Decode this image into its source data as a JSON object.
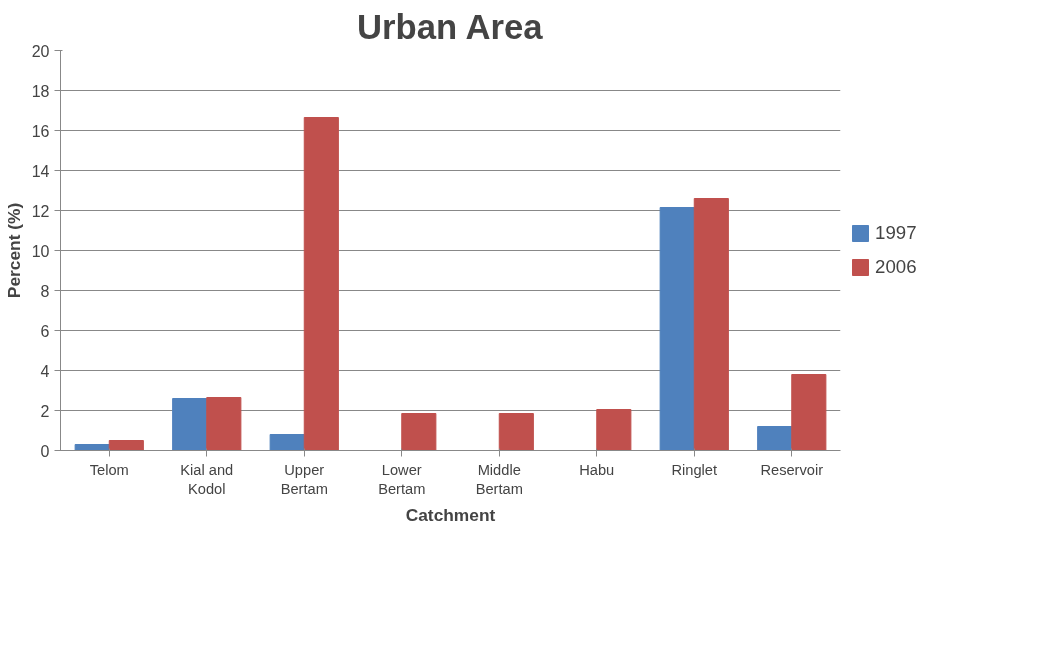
{
  "chart_data": {
    "type": "bar",
    "title": "Urban Area",
    "xlabel": "Catchment",
    "ylabel": "Percent (%)",
    "categories": [
      "Telom",
      "Kial and Kodol",
      "Upper Bertam",
      "Lower Bertam",
      "Middle Bertam",
      "Habu",
      "Ringlet",
      "Reservoir"
    ],
    "series": [
      {
        "name": "1997",
        "color": "#4f81bd",
        "values": [
          0.3,
          2.6,
          0.8,
          0,
          0,
          0,
          12.15,
          1.2
        ]
      },
      {
        "name": "2006",
        "color": "#c0504d",
        "values": [
          0.5,
          2.65,
          16.65,
          1.85,
          1.85,
          2.05,
          12.6,
          3.8
        ]
      }
    ],
    "ylim": [
      0,
      20
    ],
    "yticks": [
      0,
      2,
      4,
      6,
      8,
      10,
      12,
      14,
      16,
      18,
      20
    ],
    "grid": "y",
    "legend": "right"
  }
}
